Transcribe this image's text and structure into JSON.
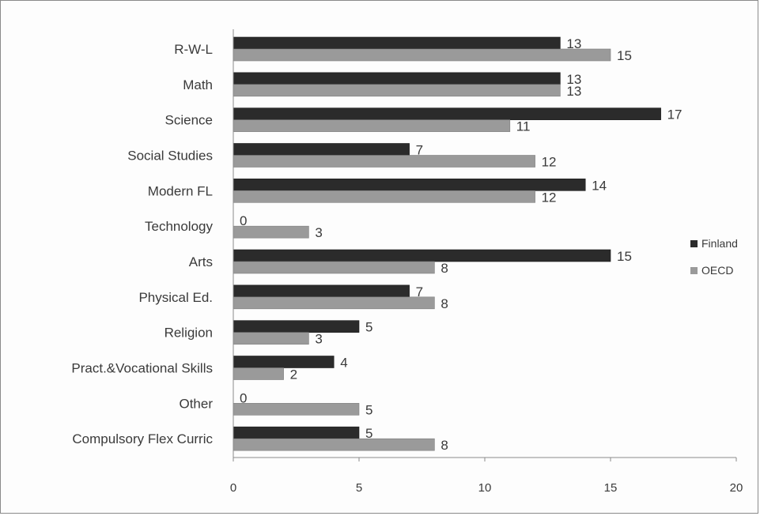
{
  "chart_data": {
    "type": "bar",
    "orientation": "horizontal",
    "title": "",
    "xlabel": "",
    "ylabel": "",
    "categories": [
      "R-W-L",
      "Math",
      "Science",
      "Social Studies",
      "Modern FL",
      "Technology",
      "Arts",
      "Physical Ed.",
      "Religion",
      "Pract.&Vocational Skills",
      "Other",
      "Compulsory Flex Curric"
    ],
    "series": [
      {
        "name": "Finland",
        "color": "#2b2b2b",
        "values": [
          13,
          13,
          17,
          7,
          14,
          0,
          15,
          7,
          5,
          4,
          0,
          5
        ]
      },
      {
        "name": "OECD",
        "color": "#9a9a9a",
        "values": [
          15,
          13,
          11,
          12,
          12,
          3,
          8,
          8,
          3,
          2,
          5,
          8
        ]
      }
    ],
    "xlim": [
      0,
      20
    ],
    "xticks": [
      0,
      5,
      10,
      15,
      20
    ],
    "grid": false,
    "data_labels": true,
    "legend_position": "right"
  }
}
